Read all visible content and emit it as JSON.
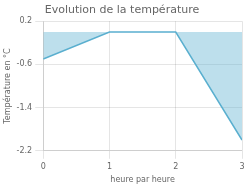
{
  "chart_data": {
    "type": "area",
    "title": "Evolution de la température",
    "x_label": "heure par heure",
    "y_label": "Température en °C",
    "x": [
      0,
      1,
      2,
      3
    ],
    "values": [
      -0.5,
      0.0,
      0.0,
      -2.0
    ],
    "color": "#5aafcf",
    "xlim": [
      0,
      3
    ],
    "ylim": [
      -2.2,
      0.2
    ],
    "xticks": [
      0,
      1,
      2,
      3
    ],
    "yticks": [
      0.2,
      -0.6,
      -1.4,
      -2.2
    ],
    "grid": true
  }
}
